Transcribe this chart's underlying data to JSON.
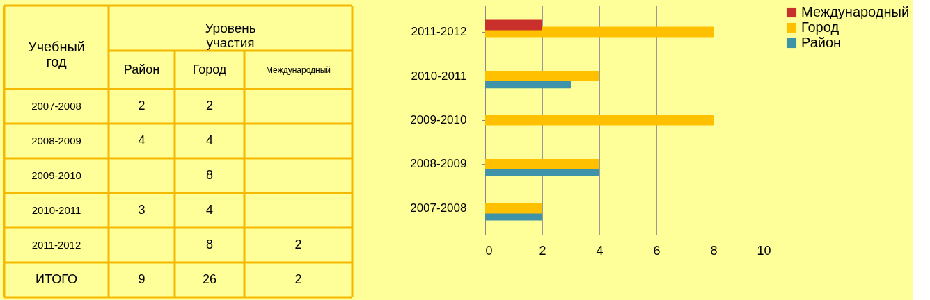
{
  "chart_data": [
    {
      "type": "heatmap",
      "xlabel": "Уровень участия",
      "ylabel": "Учебный год",
      "categories": [
        "Район",
        "Город",
        "Международный"
      ],
      "y_categories": [
        "2007-2008",
        "2008-2009",
        "2009-2010",
        "2010-2011",
        "2011-2012",
        "ИТОГО"
      ],
      "cells": [
        [
          2,
          2,
          null
        ],
        [
          4,
          4,
          null
        ],
        [
          null,
          8,
          null
        ],
        [
          3,
          4,
          null
        ],
        [
          null,
          8,
          2
        ],
        [
          9,
          26,
          2
        ]
      ],
      "data_labels": true
    },
    {
      "type": "bar",
      "orientation": "horizontal",
      "categories": [
        "2011-2012",
        "2010-2011",
        "2009-2010",
        "2008-2009",
        "2007-2008"
      ],
      "series": [
        {
          "name": "Район",
          "color": "#3e93a8",
          "values": [
            null,
            3,
            null,
            4,
            2
          ]
        },
        {
          "name": "Город",
          "color": "#ffc000",
          "values": [
            8,
            4,
            8,
            4,
            2
          ]
        },
        {
          "name": "Международный",
          "color": "#c9302c",
          "values": [
            2,
            null,
            null,
            null,
            null
          ]
        }
      ],
      "xlim": [
        0,
        10
      ],
      "xticks": [
        0,
        2,
        4,
        6,
        8,
        10
      ],
      "grid": "x",
      "legend": "right"
    }
  ]
}
